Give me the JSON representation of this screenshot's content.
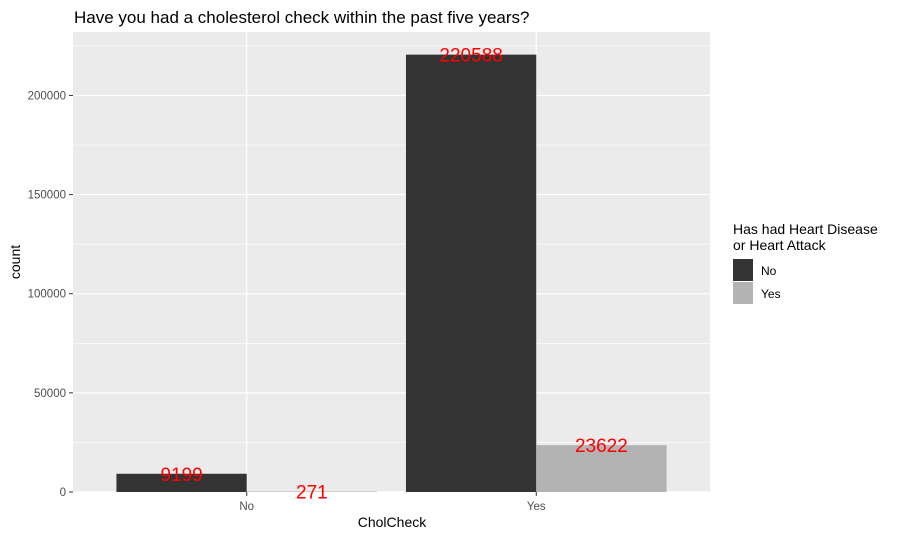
{
  "chart_data": {
    "type": "bar",
    "title": "Have you had a cholesterol check within the past five years?",
    "xlabel": "CholCheck",
    "ylabel": "count",
    "categories": [
      "No",
      "Yes"
    ],
    "series": [
      {
        "name": "No",
        "values": [
          9199,
          220588
        ],
        "color": "#333333"
      },
      {
        "name": "Yes",
        "values": [
          271,
          23622
        ],
        "color": "#b3b3b3"
      }
    ],
    "ylim": [
      0,
      232000
    ],
    "yticks": [
      0,
      50000,
      100000,
      150000,
      200000
    ],
    "ytick_labels": [
      "0",
      "50000",
      "100000",
      "150000",
      "200000"
    ],
    "data_labels": [
      [
        "9199",
        "220588"
      ],
      [
        "271",
        "23622"
      ]
    ],
    "data_label_color": "#ff0000",
    "legend": {
      "title_lines": [
        "Has had Heart Disease",
        "or Heart Attack"
      ],
      "position": "right"
    },
    "grid": true,
    "panel_background": "#ebebeb",
    "grid_color": "#ffffff"
  }
}
